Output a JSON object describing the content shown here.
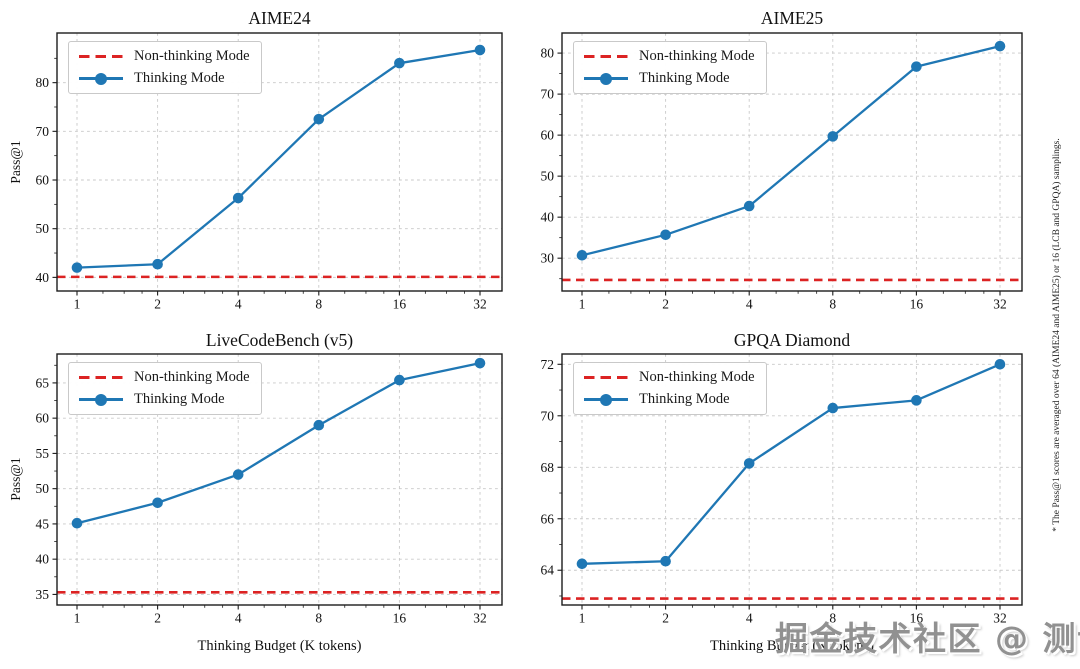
{
  "figure": {
    "ylabel": "Pass@1",
    "xlabel": "Thinking Budget (K tokens)",
    "note": "* The Pass@1 scores are averaged over 64 (AIME24 and AIME25) or 16 (LCB and GPQA) samplings.",
    "watermark": "掘金技术社区 @ 测试人"
  },
  "legend": {
    "non_thinking": "Non-thinking Mode",
    "thinking": "Thinking Mode"
  },
  "colors": {
    "thinking_line": "#1f77b4",
    "non_thinking_line": "#dc2323",
    "grid": "#c9c9c9",
    "axis": "#1c1c1c",
    "text": "#111111"
  },
  "chart_data": [
    {
      "id": "aime24",
      "type": "line",
      "title": "AIME24",
      "x_scale": "log2",
      "grid": true,
      "legend_pos": "upper left",
      "x": [
        1,
        2,
        4,
        8,
        16,
        32
      ],
      "xlabel": "Thinking Budget (K tokens)",
      "ylabel": "Pass@1",
      "yticks": [
        40,
        50,
        60,
        70,
        80
      ],
      "ylim": [
        37.2,
        90.2
      ],
      "series": [
        {
          "name": "Thinking Mode",
          "values": [
            42.0,
            42.7,
            56.3,
            72.5,
            84.0,
            86.7
          ]
        },
        {
          "name": "Non-thinking Mode",
          "baseline": 40.1
        }
      ]
    },
    {
      "id": "aime25",
      "type": "line",
      "title": "AIME25",
      "x_scale": "log2",
      "grid": true,
      "legend_pos": "upper left",
      "x": [
        1,
        2,
        4,
        8,
        16,
        32
      ],
      "xlabel": "Thinking Budget (K tokens)",
      "ylabel": "Pass@1",
      "yticks": [
        30,
        40,
        50,
        60,
        70,
        80
      ],
      "ylim": [
        22.0,
        84.9
      ],
      "series": [
        {
          "name": "Thinking Mode",
          "values": [
            30.7,
            35.7,
            42.7,
            59.7,
            76.7,
            81.7
          ]
        },
        {
          "name": "Non-thinking Mode",
          "baseline": 24.7
        }
      ]
    },
    {
      "id": "livecodebench-v5",
      "type": "line",
      "title": "LiveCodeBench (v5)",
      "x_scale": "log2",
      "grid": true,
      "legend_pos": "upper left",
      "x": [
        1,
        2,
        4,
        8,
        16,
        32
      ],
      "xlabel": "Thinking Budget (K tokens)",
      "ylabel": "Pass@1",
      "yticks": [
        35,
        40,
        45,
        50,
        55,
        60,
        65
      ],
      "ylim": [
        33.5,
        69.1
      ],
      "series": [
        {
          "name": "Thinking Mode",
          "values": [
            45.1,
            48.0,
            52.0,
            59.0,
            65.4,
            67.8
          ]
        },
        {
          "name": "Non-thinking Mode",
          "baseline": 35.3
        }
      ]
    },
    {
      "id": "gpqa-diamond",
      "type": "line",
      "title": "GPQA Diamond",
      "x_scale": "log2",
      "grid": true,
      "legend_pos": "upper left",
      "x": [
        1,
        2,
        4,
        8,
        16,
        32
      ],
      "xlabel": "Thinking Budget (K tokens)",
      "ylabel": "Pass@1",
      "yticks": [
        64,
        66,
        68,
        70,
        72
      ],
      "ylim": [
        62.65,
        72.4
      ],
      "series": [
        {
          "name": "Thinking Mode",
          "values": [
            64.25,
            64.35,
            68.15,
            70.3,
            70.6,
            72.0
          ]
        },
        {
          "name": "Non-thinking Mode",
          "baseline": 62.9
        }
      ]
    }
  ]
}
